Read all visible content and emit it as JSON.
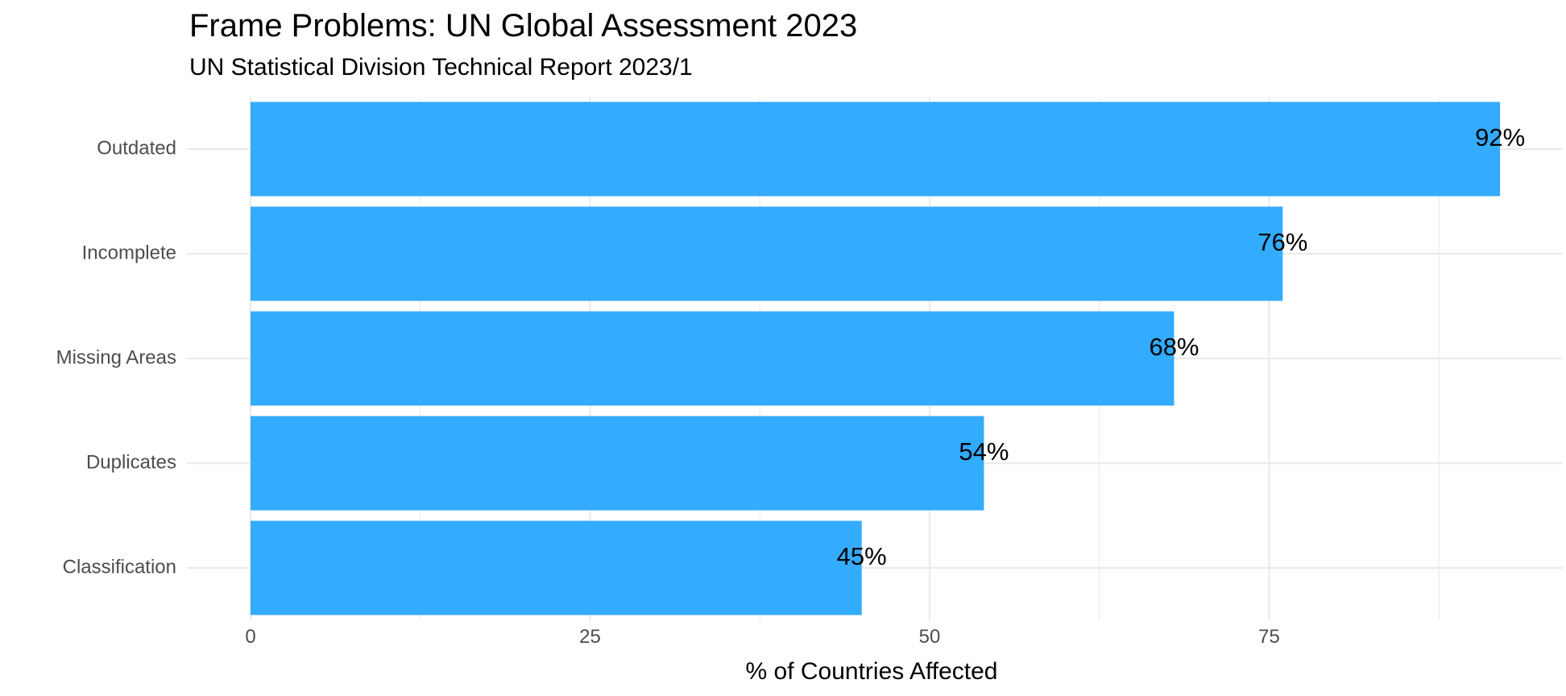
{
  "chart_data": {
    "type": "bar",
    "orientation": "horizontal",
    "title": "Frame Problems: UN Global Assessment 2023",
    "subtitle": "UN Statistical Division Technical Report 2023/1",
    "xlabel": "% of Countries Affected",
    "ylabel": "",
    "categories": [
      "Outdated",
      "Incomplete",
      "Missing Areas",
      "Duplicates",
      "Classification"
    ],
    "values": [
      92,
      76,
      68,
      54,
      45
    ],
    "data_labels": [
      "92%",
      "76%",
      "68%",
      "54%",
      "45%"
    ],
    "xlim": [
      0,
      96.6
    ],
    "x_ticks": [
      0,
      25,
      50,
      75
    ],
    "x_tick_labels": [
      "0",
      "25",
      "50",
      "75"
    ],
    "grid": true,
    "legend": "none",
    "bar_color": "#33abff",
    "grid_color": "#ebebeb"
  }
}
